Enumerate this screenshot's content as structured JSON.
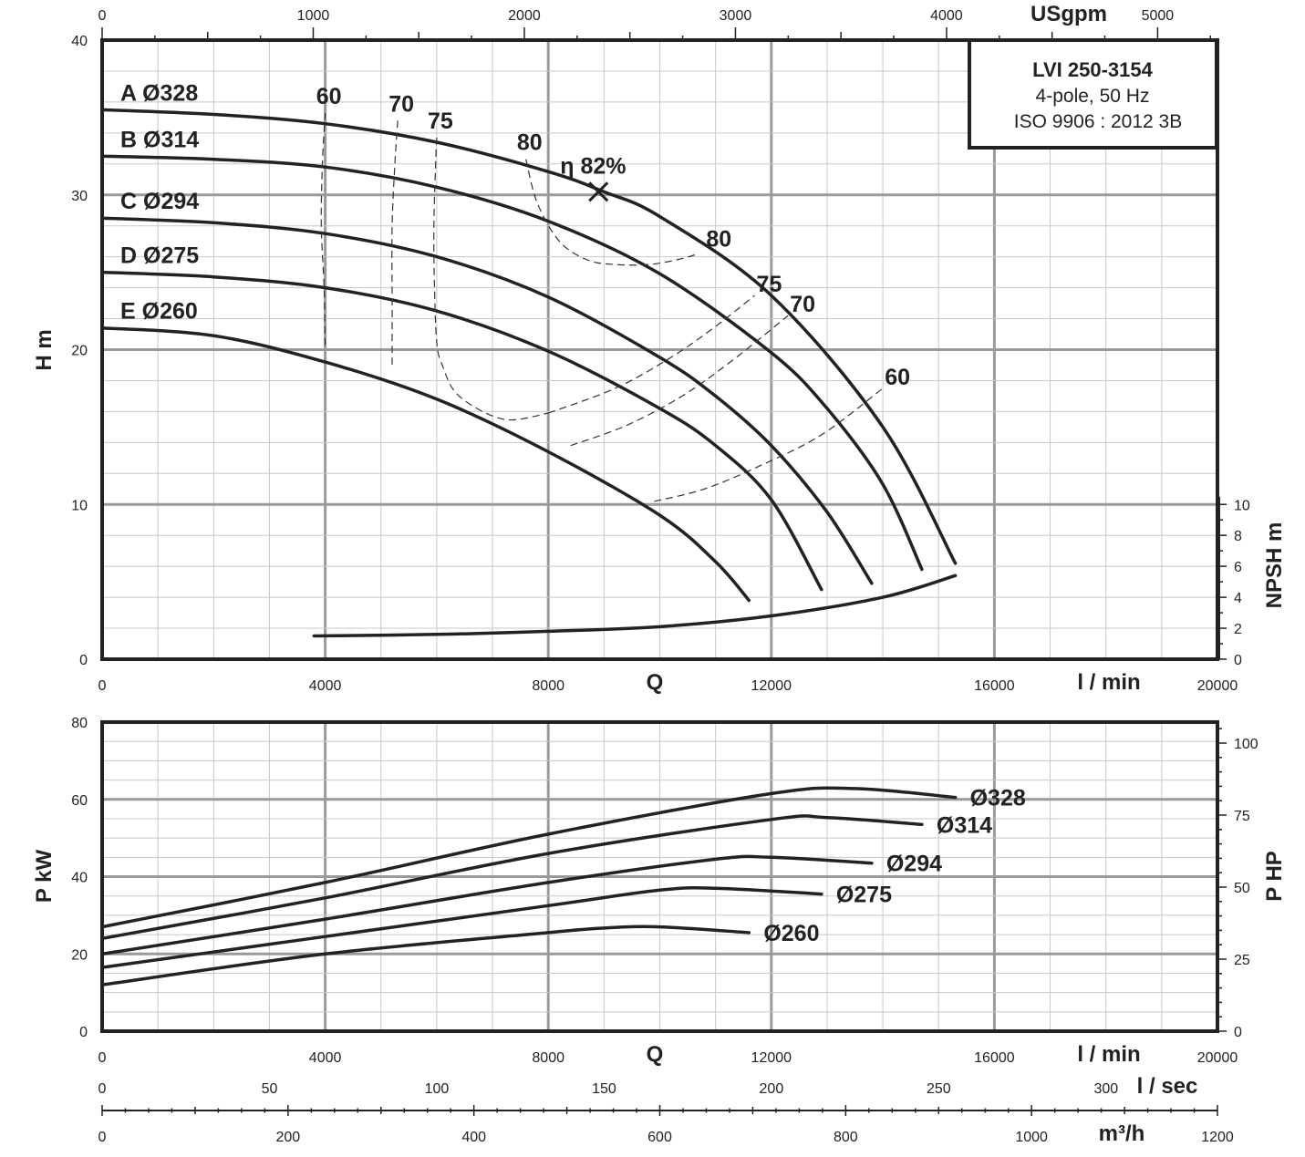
{
  "chart_data": [
    {
      "type": "line",
      "title": "",
      "xlabel": "Q",
      "x_unit": "l / min",
      "ylabel": "H m",
      "xlim": [
        0,
        20000
      ],
      "ylim": [
        0,
        40
      ],
      "x_ticks": [
        "0",
        "4000",
        "8000",
        "12000",
        "16000",
        "20000"
      ],
      "y_ticks": [
        "0",
        "10",
        "20",
        "30",
        "40"
      ],
      "top_axis": {
        "label": "USgpm",
        "lim": [
          0,
          5283.4
        ],
        "ticks": [
          "0",
          "1000",
          "2000",
          "3000",
          "4000",
          "5000"
        ]
      },
      "right_axis": {
        "label": "NPSH m",
        "lim": [
          0,
          40
        ],
        "ticks": [
          "0",
          "2",
          "4",
          "6",
          "8",
          "10"
        ]
      },
      "info_box": [
        "LVI 250-3154",
        "4-pole, 50 Hz",
        "ISO 9906 : 2012 3B"
      ],
      "series": [
        {
          "name": "A Ø328",
          "x": [
            0,
            2000,
            4000,
            6000,
            8000,
            9000,
            10000,
            12000,
            14000,
            15300
          ],
          "y": [
            35.5,
            35.2,
            34.6,
            33.4,
            31.5,
            30.2,
            28.6,
            23.5,
            15.0,
            6.2
          ]
        },
        {
          "name": "B Ø314",
          "x": [
            0,
            2000,
            4000,
            6000,
            8000,
            10000,
            12000,
            13000,
            14000,
            14700
          ],
          "y": [
            32.5,
            32.3,
            31.8,
            30.5,
            28.3,
            24.9,
            19.8,
            16.2,
            11.3,
            5.8
          ]
        },
        {
          "name": "C Ø294",
          "x": [
            0,
            2000,
            4000,
            6000,
            8000,
            10000,
            11000,
            12000,
            13000,
            13800
          ],
          "y": [
            28.5,
            28.2,
            27.5,
            26.0,
            23.4,
            19.5,
            17.0,
            13.8,
            9.5,
            4.9
          ]
        },
        {
          "name": "D Ø275",
          "x": [
            0,
            2000,
            4000,
            6000,
            8000,
            10000,
            11000,
            12000,
            12900
          ],
          "y": [
            25.0,
            24.7,
            24.0,
            22.5,
            19.9,
            16.2,
            13.8,
            10.3,
            4.5
          ]
        },
        {
          "name": "E Ø260",
          "x": [
            0,
            2000,
            4000,
            6000,
            8000,
            10000,
            11000,
            11600
          ],
          "y": [
            21.4,
            20.9,
            19.2,
            16.8,
            13.4,
            9.3,
            6.3,
            3.8
          ]
        },
        {
          "name": "NPSH",
          "x": [
            3800,
            6000,
            8000,
            10000,
            12000,
            14000,
            15300
          ],
          "y": [
            1.5,
            1.6,
            1.8,
            2.1,
            2.8,
            4.0,
            5.4
          ]
        }
      ],
      "efficiency_contours": [
        {
          "label": "60",
          "left_label": "60",
          "right_label": "60",
          "left": {
            "x": [
              4000,
              3950,
              3930,
              3980,
              4000
            ],
            "y": [
              35.3,
              32.0,
              28.0,
              24.0,
              20.0
            ]
          },
          "right": {
            "x": [
              9900,
              10800,
              11800,
              12900,
              14000
            ],
            "y": [
              10.2,
              11.0,
              12.5,
              14.5,
              17.5
            ]
          }
        },
        {
          "label": "70",
          "left_label": "70",
          "right_label": "70",
          "left": {
            "x": [
              5300,
              5250,
              5200,
              5200,
              5200
            ],
            "y": [
              34.8,
              32.0,
              28.0,
              23.0,
              19.0
            ]
          },
          "right": {
            "x": [
              8400,
              9400,
              10400,
              11300,
              12300
            ],
            "y": [
              13.8,
              15.1,
              17.0,
              19.3,
              22.2
            ]
          }
        },
        {
          "label": "75",
          "left_label": "75",
          "right_label": "75",
          "left": {
            "x": [
              6000,
              5980,
              5950,
              5960,
              6000,
              6100,
              6400,
              7200,
              8000
            ],
            "y": [
              33.7,
              32.0,
              28.0,
              24.0,
              20.5,
              19.0,
              17.0,
              15.5,
              15.9
            ]
          },
          "right": {
            "x": [
              8000,
              9200,
              10200,
              11000,
              11700
            ],
            "y": [
              15.9,
              17.5,
              19.5,
              21.5,
              23.5
            ]
          }
        },
        {
          "label": "80",
          "left_label": "80",
          "right_label": "80",
          "left": {
            "x": [
              7600,
              7800,
              8200,
              8700,
              9200,
              9800,
              10300,
              10700
            ],
            "y": [
              32.3,
              29.5,
              27.0,
              25.8,
              25.5,
              25.5,
              25.8,
              26.2
            ]
          }
        }
      ],
      "bep": {
        "label": "η 82%",
        "x": 8900,
        "y": 30.2
      }
    },
    {
      "type": "line",
      "title": "",
      "xlabel": "Q",
      "x_unit": "l / min",
      "ylabel": "P kW",
      "xlim": [
        0,
        20000
      ],
      "ylim": [
        0,
        80
      ],
      "x_ticks": [
        "0",
        "4000",
        "8000",
        "12000",
        "16000",
        "20000"
      ],
      "y_ticks": [
        "0",
        "20",
        "40",
        "60",
        "80"
      ],
      "right_axis": {
        "label": "P HP",
        "lim": [
          0,
          107.28
        ],
        "ticks": [
          "0",
          "25",
          "50",
          "75",
          "100"
        ]
      },
      "bottom_axes": [
        {
          "label": "l / sec",
          "lim": [
            0,
            333.3
          ],
          "ticks": [
            "0",
            "50",
            "100",
            "150",
            "200",
            "250",
            "300"
          ]
        },
        {
          "label": "m³/h",
          "lim": [
            0,
            1200
          ],
          "ticks": [
            "0",
            "200",
            "400",
            "600",
            "800",
            "1000",
            "1200"
          ]
        }
      ],
      "series": [
        {
          "name": "Ø328",
          "x": [
            0,
            4000,
            8000,
            12000,
            13500,
            15300
          ],
          "y": [
            27.0,
            38.5,
            51.0,
            61.5,
            62.8,
            60.5
          ]
        },
        {
          "name": "Ø314",
          "x": [
            0,
            4000,
            8000,
            12000,
            13000,
            14700
          ],
          "y": [
            24.0,
            34.5,
            46.0,
            54.8,
            55.3,
            53.5
          ]
        },
        {
          "name": "Ø294",
          "x": [
            0,
            4000,
            8000,
            11000,
            12000,
            13800
          ],
          "y": [
            20.0,
            29.0,
            38.5,
            44.5,
            45.0,
            43.5
          ]
        },
        {
          "name": "Ø275",
          "x": [
            0,
            4000,
            8000,
            10000,
            11000,
            12900
          ],
          "y": [
            16.5,
            24.5,
            32.5,
            36.5,
            37.0,
            35.5
          ]
        },
        {
          "name": "Ø260",
          "x": [
            0,
            4000,
            8000,
            9000,
            10000,
            11600
          ],
          "y": [
            12.0,
            20.0,
            25.5,
            26.7,
            27.0,
            25.5
          ]
        }
      ]
    }
  ]
}
